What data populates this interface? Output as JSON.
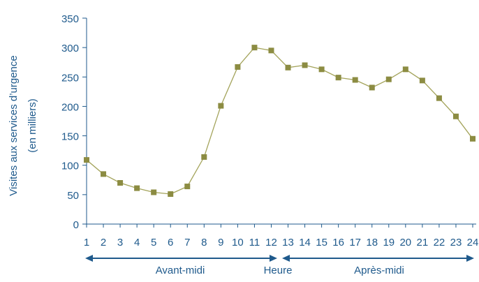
{
  "chart_data": {
    "type": "line",
    "xlabel": "Heure",
    "ylabel": "Visites aux services d’urgence",
    "ylabel_unit": "(en milliers)",
    "x": [
      1,
      2,
      3,
      4,
      5,
      6,
      7,
      8,
      9,
      10,
      11,
      12,
      13,
      14,
      15,
      16,
      17,
      18,
      19,
      20,
      21,
      22,
      23,
      24
    ],
    "x_tick_labels": [
      "1",
      "2",
      "3",
      "4",
      "5",
      "6",
      "7",
      "8",
      "9",
      "10",
      "11",
      "12",
      "13",
      "14",
      "15",
      "16",
      "17",
      "18",
      "19",
      "20",
      "21",
      "22",
      "23",
      "24"
    ],
    "series": [
      {
        "values": [
          109,
          85,
          70,
          61,
          54,
          51,
          64,
          114,
          201,
          267,
          300,
          295,
          266,
          270,
          263,
          249,
          245,
          232,
          246,
          263,
          244,
          214,
          183,
          145
        ]
      }
    ],
    "ylim": [
      0,
      350
    ],
    "yticks": [
      0,
      50,
      100,
      150,
      200,
      250,
      300,
      350
    ],
    "grid": false,
    "annotations": {
      "morning": "Avant-midi",
      "afternoon": "Après-midi"
    },
    "colors": {
      "text": "#1f5a8c",
      "axis": "#1f5a8c",
      "line": "#a3a35a",
      "marker": "#8c8c42"
    }
  }
}
